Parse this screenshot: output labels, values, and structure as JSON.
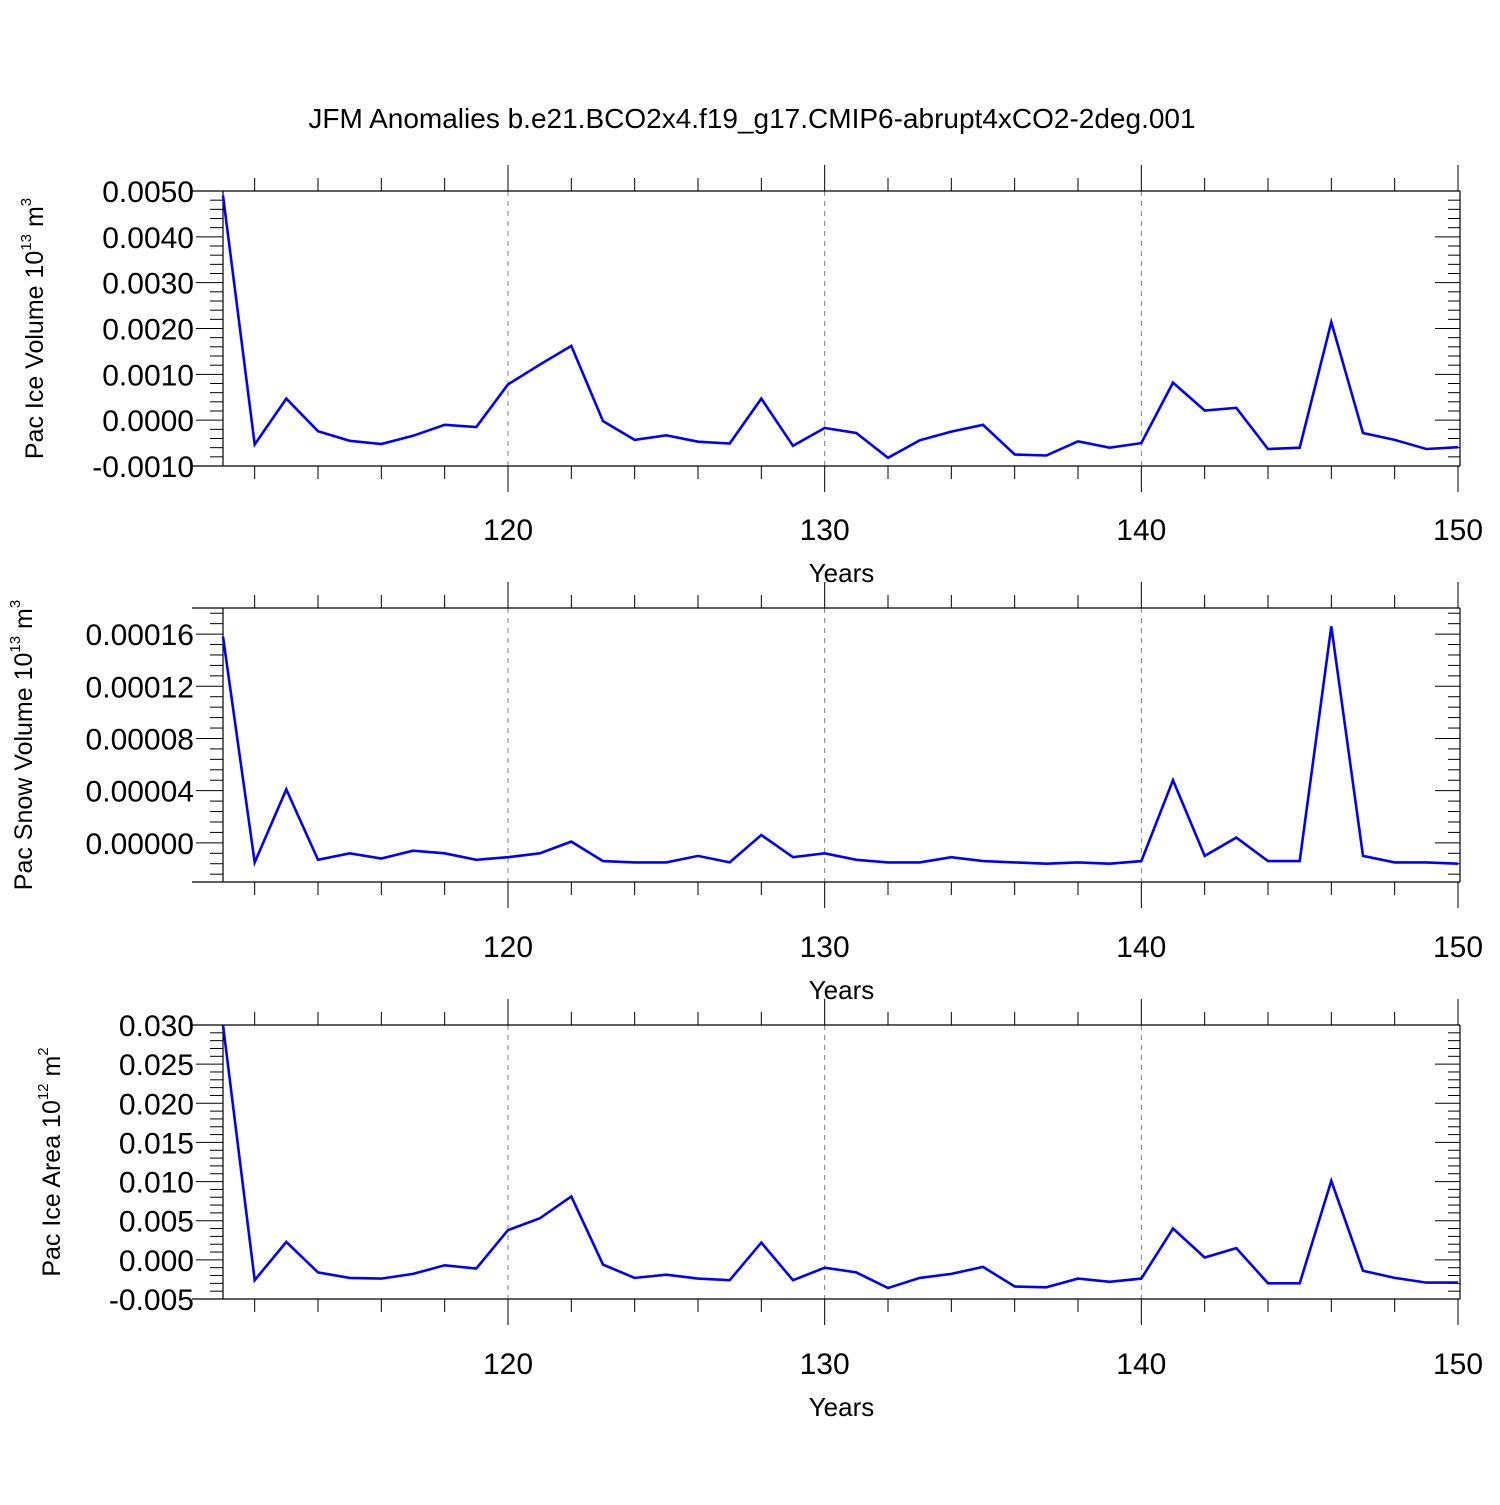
{
  "figure": {
    "title": "JFM Anomalies b.e21.BCO2x4.f19_g17.CMIP6-abrupt4xCO2-2deg.001"
  },
  "colors": {
    "line": "#0000ff",
    "axes": "#000000",
    "grid": "#808080"
  },
  "chart_data": [
    {
      "type": "line",
      "xlabel": "Years",
      "ylabel": {
        "text": "Pac Ice Volume 10",
        "sup": "13",
        "unit": " m",
        "unit_sup": "3"
      },
      "xlim": [
        111,
        150
      ],
      "ylim": [
        -0.001,
        0.005
      ],
      "xticks": [
        120,
        130,
        140,
        150
      ],
      "yticks": [
        -0.001,
        0.0,
        0.001,
        0.002,
        0.003,
        0.004,
        0.005
      ],
      "ytick_labels": [
        "-0.0010",
        "0.0000",
        "0.0010",
        "0.0020",
        "0.0030",
        "0.0040",
        "0.0050"
      ],
      "grid": "dashed vertical at major x ticks",
      "x": [
        111,
        112,
        113,
        114,
        115,
        116,
        117,
        118,
        119,
        120,
        121,
        122,
        123,
        124,
        125,
        126,
        127,
        128,
        129,
        130,
        131,
        132,
        133,
        134,
        135,
        136,
        137,
        138,
        139,
        140,
        141,
        142,
        143,
        144,
        145,
        146,
        147,
        148,
        149,
        150
      ],
      "series": [
        {
          "values": [
            0.0049,
            -0.00053,
            0.00047,
            -0.00024,
            -0.00045,
            -0.00052,
            -0.00034,
            -0.0001,
            -0.00015,
            0.00078,
            0.00121,
            0.00162,
            -2e-05,
            -0.00043,
            -0.00033,
            -0.00047,
            -0.00051,
            0.00047,
            -0.00056,
            -0.00017,
            -0.00028,
            -0.00082,
            -0.00044,
            -0.00025,
            -0.0001,
            -0.00075,
            -0.00077,
            -0.00046,
            -0.0006,
            -0.0005,
            0.00082,
            0.00021,
            0.00027,
            -0.00063,
            -0.0006,
            0.00214,
            -0.00028,
            -0.00043,
            -0.00063,
            -0.00059
          ]
        }
      ]
    },
    {
      "type": "line",
      "xlabel": "Years",
      "ylabel": {
        "text": "Pac Snow Volume 10",
        "sup": "13",
        "unit": " m",
        "unit_sup": "3"
      },
      "xlim": [
        111,
        150
      ],
      "ylim": [
        -3e-05,
        0.00018
      ],
      "xticks": [
        120,
        130,
        140,
        150
      ],
      "yticks": [
        0.0,
        4e-05,
        8e-05,
        0.00012,
        0.00016
      ],
      "ytick_labels": [
        "0.00000",
        "0.00004",
        "0.00008",
        "0.00012",
        "0.00016"
      ],
      "grid": "dashed vertical at major x ticks",
      "x": [
        111,
        112,
        113,
        114,
        115,
        116,
        117,
        118,
        119,
        120,
        121,
        122,
        123,
        124,
        125,
        126,
        127,
        128,
        129,
        130,
        131,
        132,
        133,
        134,
        135,
        136,
        137,
        138,
        139,
        140,
        141,
        142,
        143,
        144,
        145,
        146,
        147,
        148,
        149,
        150
      ],
      "series": [
        {
          "values": [
            0.000158,
            -1.5e-05,
            4.1e-05,
            -1.3e-05,
            -8e-06,
            -1.2e-05,
            -6e-06,
            -8e-06,
            -1.3e-05,
            -1.1e-05,
            -8e-06,
            1e-06,
            -1.4e-05,
            -1.5e-05,
            -1.5e-05,
            -1e-05,
            -1.5e-05,
            6e-06,
            -1.1e-05,
            -8e-06,
            -1.3e-05,
            -1.5e-05,
            -1.5e-05,
            -1.1e-05,
            -1.4e-05,
            -1.5e-05,
            -1.6e-05,
            -1.5e-05,
            -1.6e-05,
            -1.4e-05,
            4.8e-05,
            -1e-05,
            4e-06,
            -1.4e-05,
            -1.4e-05,
            0.000166,
            -1e-05,
            -1.5e-05,
            -1.5e-05,
            -1.6e-05
          ]
        }
      ]
    },
    {
      "type": "line",
      "xlabel": "Years",
      "ylabel": {
        "text": "Pac Ice Area 10",
        "sup": "12",
        "unit": " m",
        "unit_sup": "2"
      },
      "xlim": [
        111,
        150
      ],
      "ylim": [
        -0.005,
        0.03
      ],
      "xticks": [
        120,
        130,
        140,
        150
      ],
      "yticks": [
        -0.005,
        0.0,
        0.005,
        0.01,
        0.015,
        0.02,
        0.025,
        0.03
      ],
      "ytick_labels": [
        "-0.005",
        "0.000",
        "0.005",
        "0.010",
        "0.015",
        "0.020",
        "0.025",
        "0.030"
      ],
      "grid": "dashed vertical at major x ticks",
      "x": [
        111,
        112,
        113,
        114,
        115,
        116,
        117,
        118,
        119,
        120,
        121,
        122,
        123,
        124,
        125,
        126,
        127,
        128,
        129,
        130,
        131,
        132,
        133,
        134,
        135,
        136,
        137,
        138,
        139,
        140,
        141,
        142,
        143,
        144,
        145,
        146,
        147,
        148,
        149,
        150
      ],
      "series": [
        {
          "values": [
            0.03,
            -0.0026,
            0.0023,
            -0.0016,
            -0.0023,
            -0.0024,
            -0.0018,
            -0.0007,
            -0.0011,
            0.0038,
            0.0053,
            0.0081,
            -0.0006,
            -0.0023,
            -0.0019,
            -0.0024,
            -0.0026,
            0.0022,
            -0.0026,
            -0.001,
            -0.0016,
            -0.0036,
            -0.0023,
            -0.0018,
            -0.0009,
            -0.0034,
            -0.0035,
            -0.0024,
            -0.0028,
            -0.0024,
            0.004,
            0.0003,
            0.0015,
            -0.003,
            -0.003,
            0.0101,
            -0.0014,
            -0.0023,
            -0.0029,
            -0.0029
          ]
        }
      ]
    }
  ]
}
